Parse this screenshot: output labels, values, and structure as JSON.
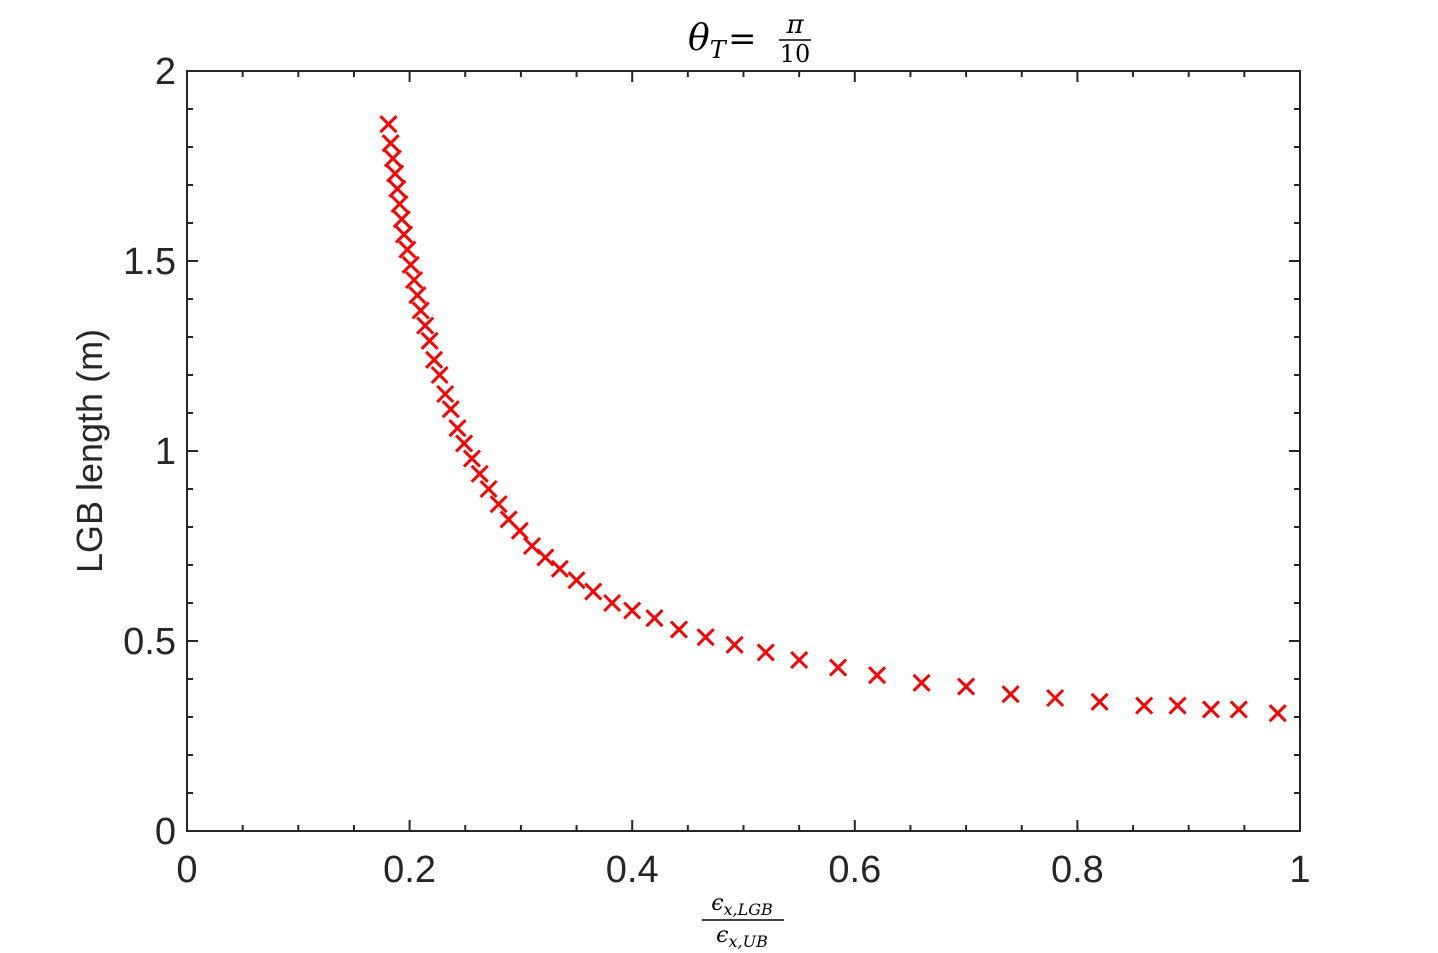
{
  "chart_data": {
    "type": "scatter",
    "title": "θT = π/10",
    "title_parts": {
      "theta": "θ",
      "sub": "T",
      "equals": "=",
      "num": "π",
      "den": "10"
    },
    "xlabel": "ϵx,LGB / ϵx,UB",
    "xlabel_parts": {
      "eps": "ϵ",
      "num_sub": "x,LGB",
      "den_sub": "x,UB"
    },
    "ylabel": "LGB length (m)",
    "xlim": [
      0,
      1
    ],
    "ylim": [
      0,
      2
    ],
    "xticks": [
      0,
      0.2,
      0.4,
      0.6,
      0.8,
      1
    ],
    "xtick_labels": [
      "0",
      "0.2",
      "0.4",
      "0.6",
      "0.8",
      "1"
    ],
    "yticks": [
      0,
      0.5,
      1,
      1.5,
      2
    ],
    "ytick_labels": [
      "0",
      "0.5",
      "1",
      "1.5",
      "2"
    ],
    "marker": "x",
    "marker_color": "#ff0000",
    "grid": false,
    "x": [
      0.181,
      0.183,
      0.185,
      0.187,
      0.189,
      0.191,
      0.193,
      0.195,
      0.198,
      0.201,
      0.204,
      0.207,
      0.21,
      0.214,
      0.218,
      0.222,
      0.227,
      0.232,
      0.237,
      0.243,
      0.249,
      0.256,
      0.263,
      0.271,
      0.28,
      0.289,
      0.299,
      0.31,
      0.322,
      0.335,
      0.35,
      0.365,
      0.382,
      0.4,
      0.42,
      0.442,
      0.466,
      0.492,
      0.52,
      0.55,
      0.585,
      0.62,
      0.66,
      0.7,
      0.74,
      0.78,
      0.82,
      0.86,
      0.89,
      0.92,
      0.945,
      0.98
    ],
    "y": [
      1.86,
      1.81,
      1.77,
      1.73,
      1.69,
      1.65,
      1.61,
      1.57,
      1.53,
      1.49,
      1.45,
      1.41,
      1.37,
      1.33,
      1.29,
      1.24,
      1.2,
      1.15,
      1.11,
      1.06,
      1.02,
      0.98,
      0.94,
      0.9,
      0.86,
      0.82,
      0.79,
      0.75,
      0.72,
      0.69,
      0.66,
      0.63,
      0.6,
      0.58,
      0.56,
      0.53,
      0.51,
      0.49,
      0.47,
      0.45,
      0.43,
      0.41,
      0.39,
      0.38,
      0.36,
      0.35,
      0.34,
      0.33,
      0.33,
      0.32,
      0.32,
      0.31
    ]
  }
}
